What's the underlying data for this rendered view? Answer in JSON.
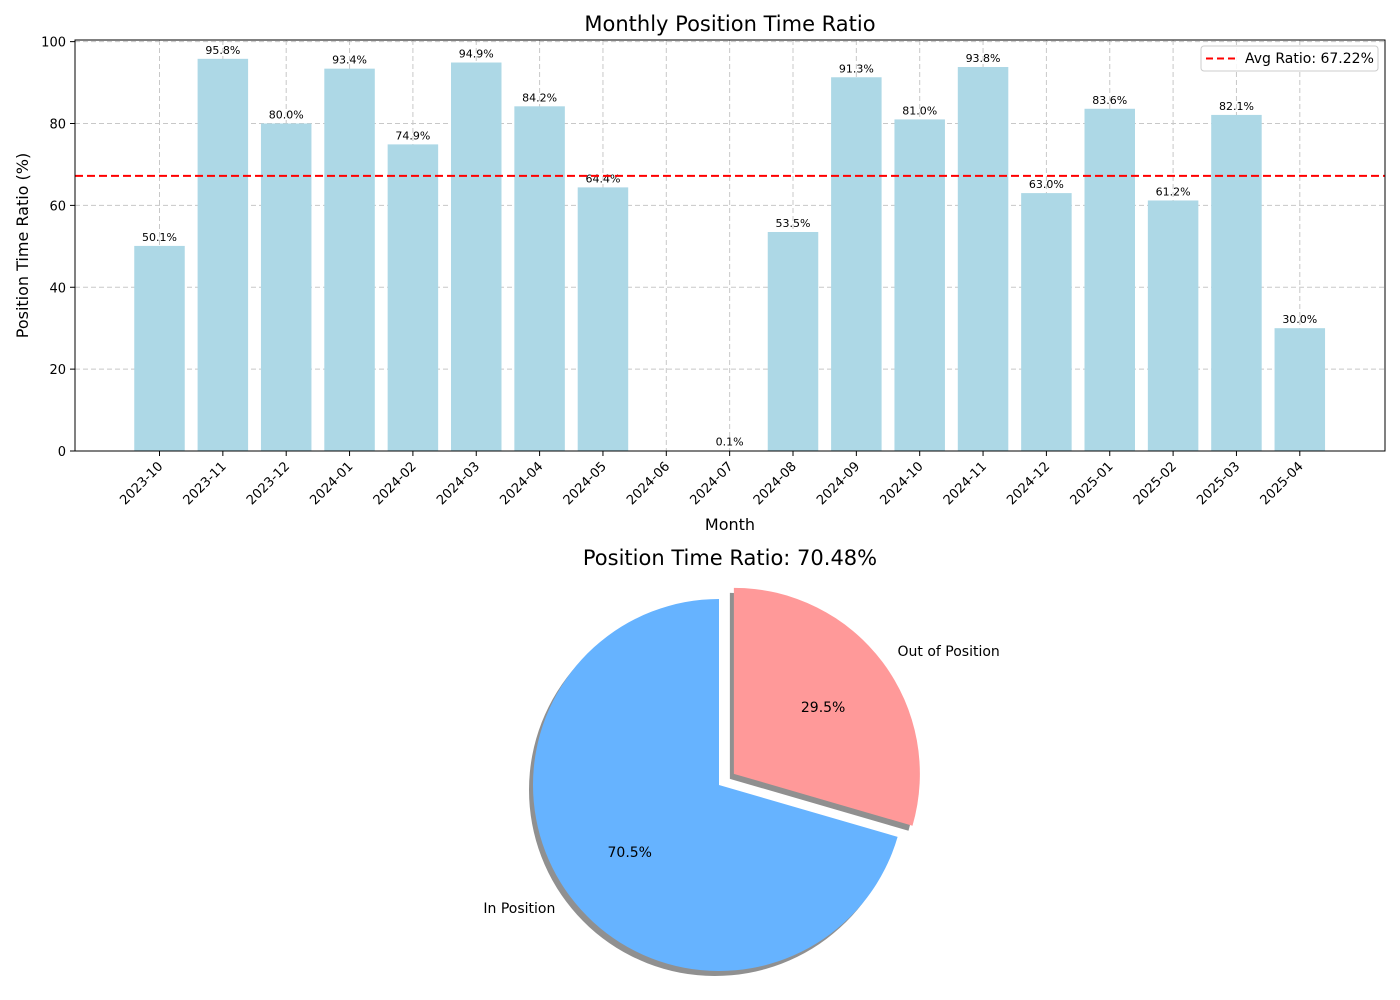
{
  "chart_data": [
    {
      "type": "bar",
      "title": "Monthly Position Time Ratio",
      "xlabel": "Month",
      "ylabel": "Position Time Ratio (%)",
      "ylim": [
        0,
        100
      ],
      "yticks": [
        "0",
        "20",
        "40",
        "60",
        "80",
        "100"
      ],
      "categories": [
        "2023-10",
        "2023-11",
        "2023-12",
        "2024-01",
        "2024-02",
        "2024-03",
        "2024-04",
        "2024-05",
        "2024-06",
        "2024-07",
        "2024-08",
        "2024-09",
        "2024-10",
        "2024-11",
        "2024-12",
        "2025-01",
        "2025-02",
        "2025-03",
        "2025-04"
      ],
      "values": [
        50.1,
        95.8,
        80.0,
        93.4,
        74.9,
        94.9,
        84.2,
        64.4,
        0,
        0.1,
        53.5,
        91.3,
        81.0,
        93.8,
        63.0,
        83.6,
        61.2,
        82.1,
        30.0
      ],
      "value_labels": [
        "50.1%",
        "95.8%",
        "80.0%",
        "93.4%",
        "74.9%",
        "94.9%",
        "84.2%",
        "64.4%",
        "",
        "0.1%",
        "53.5%",
        "91.3%",
        "81.0%",
        "93.8%",
        "63.0%",
        "83.6%",
        "61.2%",
        "82.1%",
        "30.0%"
      ],
      "bar_color": "#add8e6",
      "grid": true,
      "reference_line": {
        "value": 67.22,
        "label": "Avg Ratio: 67.22%",
        "color": "#ff0000",
        "style": "dashed"
      },
      "legend_position": "top-right"
    },
    {
      "type": "pie",
      "title": "Position Time Ratio: 70.48%",
      "slices": [
        {
          "label": "In Position",
          "value": 70.5,
          "pct_label": "70.5%",
          "color": "#66b3ff",
          "exploded": false
        },
        {
          "label": "Out of Position",
          "value": 29.5,
          "pct_label": "29.5%",
          "color": "#ff9999",
          "exploded": true
        }
      ],
      "shadow": true
    }
  ]
}
